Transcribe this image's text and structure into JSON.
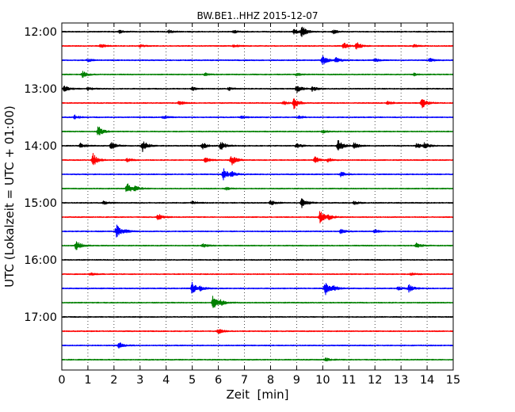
{
  "chart_data": {
    "type": "line",
    "title": "BW.BE1..HHZ 2015-12-07",
    "xlabel": "Zeit  [min]",
    "ylabel": "UTC (Lokalzeit = UTC + 01:00)",
    "xlim": [
      0,
      15
    ],
    "x_ticks": [
      "0",
      "1",
      "2",
      "3",
      "4",
      "5",
      "6",
      "7",
      "8",
      "9",
      "10",
      "11",
      "12",
      "13",
      "14",
      "15"
    ],
    "y_tick_labels": [
      "12:00",
      "13:00",
      "14:00",
      "15:00",
      "16:00",
      "17:00"
    ],
    "grid": "vertical dotted",
    "trace_colors": [
      "#000000",
      "#ff0000",
      "#0000ff",
      "#008000"
    ],
    "traces": [
      {
        "start": "12:00",
        "events": [
          [
            2.2,
            0.25
          ],
          [
            4.1,
            0.25
          ],
          [
            6.6,
            0.2
          ],
          [
            8.9,
            0.35
          ],
          [
            9.2,
            0.9
          ],
          [
            10.4,
            0.3
          ]
        ]
      },
      {
        "start": "12:15",
        "events": [
          [
            1.5,
            0.3
          ],
          [
            3.0,
            0.2
          ],
          [
            6.6,
            0.2
          ],
          [
            10.8,
            0.5
          ],
          [
            11.3,
            0.6
          ],
          [
            13.5,
            0.25
          ]
        ]
      },
      {
        "start": "12:30",
        "events": [
          [
            1.0,
            0.2
          ],
          [
            10.0,
            0.8
          ],
          [
            10.5,
            0.5
          ],
          [
            12.0,
            0.25
          ],
          [
            14.1,
            0.3
          ]
        ]
      },
      {
        "start": "12:45",
        "events": [
          [
            0.8,
            0.5
          ],
          [
            5.5,
            0.2
          ],
          [
            9.0,
            0.2
          ],
          [
            13.5,
            0.2
          ]
        ]
      },
      {
        "start": "13:00",
        "events": [
          [
            0.1,
            0.5
          ],
          [
            1.0,
            0.25
          ],
          [
            5.0,
            0.3
          ],
          [
            6.4,
            0.25
          ],
          [
            9.0,
            0.6
          ],
          [
            9.6,
            0.4
          ]
        ]
      },
      {
        "start": "13:15",
        "events": [
          [
            4.5,
            0.3
          ],
          [
            8.5,
            0.3
          ],
          [
            8.9,
            0.9
          ],
          [
            12.5,
            0.25
          ],
          [
            13.8,
            0.9
          ]
        ]
      },
      {
        "start": "13:30",
        "events": [
          [
            0.5,
            0.3
          ],
          [
            3.9,
            0.25
          ],
          [
            6.9,
            0.2
          ],
          [
            9.1,
            0.25
          ]
        ]
      },
      {
        "start": "13:45",
        "events": [
          [
            1.4,
            0.9
          ],
          [
            10.0,
            0.2
          ]
        ]
      },
      {
        "start": "14:00",
        "events": [
          [
            0.7,
            0.4
          ],
          [
            1.9,
            0.6
          ],
          [
            3.1,
            0.9
          ],
          [
            5.4,
            0.5
          ],
          [
            6.1,
            0.8
          ],
          [
            9.0,
            0.4
          ],
          [
            10.6,
            1.0
          ],
          [
            11.2,
            0.5
          ],
          [
            13.6,
            0.4
          ],
          [
            13.9,
            0.5
          ]
        ]
      },
      {
        "start": "14:15",
        "events": [
          [
            1.2,
            1.0
          ],
          [
            2.5,
            0.3
          ],
          [
            5.5,
            0.4
          ],
          [
            6.5,
            0.9
          ],
          [
            9.7,
            0.5
          ],
          [
            10.2,
            0.3
          ]
        ]
      },
      {
        "start": "14:30",
        "events": [
          [
            6.2,
            0.9
          ],
          [
            6.5,
            0.5
          ],
          [
            10.7,
            0.4
          ]
        ]
      },
      {
        "start": "14:45",
        "events": [
          [
            2.5,
            0.9
          ],
          [
            2.8,
            0.5
          ],
          [
            6.3,
            0.2
          ]
        ]
      },
      {
        "start": "15:00",
        "events": [
          [
            1.6,
            0.25
          ],
          [
            5.0,
            0.2
          ],
          [
            8.0,
            0.4
          ],
          [
            9.2,
            0.8
          ],
          [
            11.2,
            0.25
          ]
        ]
      },
      {
        "start": "15:15",
        "events": [
          [
            3.7,
            0.5
          ],
          [
            9.9,
            1.1
          ],
          [
            10.2,
            0.5
          ]
        ]
      },
      {
        "start": "15:30",
        "events": [
          [
            2.1,
            1.0
          ],
          [
            2.4,
            0.4
          ],
          [
            10.7,
            0.4
          ],
          [
            12.0,
            0.3
          ]
        ]
      },
      {
        "start": "15:45",
        "events": [
          [
            0.55,
            0.9
          ],
          [
            5.4,
            0.3
          ],
          [
            13.6,
            0.4
          ]
        ]
      },
      {
        "start": "16:00",
        "events": []
      },
      {
        "start": "16:15",
        "events": [
          [
            1.1,
            0.2
          ],
          [
            13.4,
            0.2
          ]
        ]
      },
      {
        "start": "16:30",
        "events": [
          [
            5.0,
            1.0
          ],
          [
            5.3,
            0.4
          ],
          [
            10.1,
            1.1
          ],
          [
            10.4,
            0.5
          ],
          [
            12.9,
            0.3
          ],
          [
            13.3,
            0.6
          ]
        ]
      },
      {
        "start": "16:45",
        "events": [
          [
            5.8,
            1.2
          ],
          [
            6.1,
            0.5
          ]
        ]
      },
      {
        "start": "17:00",
        "events": []
      },
      {
        "start": "17:15",
        "events": [
          [
            6.0,
            0.4
          ]
        ]
      },
      {
        "start": "17:30",
        "events": [
          [
            2.2,
            0.5
          ]
        ]
      },
      {
        "start": "17:45",
        "events": [
          [
            10.1,
            0.3
          ]
        ]
      }
    ]
  }
}
